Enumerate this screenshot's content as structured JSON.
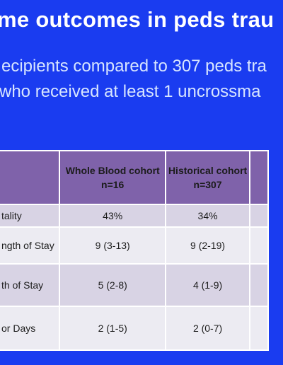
{
  "slide": {
    "title": "me outcomes in peds trau",
    "subtitle_line1": "ecipients compared to 307 peds tra",
    "subtitle_line2": "who received at least 1 uncrossma"
  },
  "table": {
    "headers": {
      "col1_line1": "Whole Blood cohort",
      "col1_line2": "n=16",
      "col2_line1": "Historical cohort",
      "col2_line2": "n=307"
    },
    "rows": [
      {
        "label": "tality",
        "whole_blood": "43%",
        "historical": "34%"
      },
      {
        "label": "ngth of Stay",
        "whole_blood": "9 (3-13)",
        "historical": "9 (2-19)"
      },
      {
        "label": "th of Stay",
        "whole_blood": "5 (2-8)",
        "historical": "4 (1-9)"
      },
      {
        "label": "or Days",
        "whole_blood": "2 (1-5)",
        "historical": "2 (0-7)"
      }
    ]
  }
}
